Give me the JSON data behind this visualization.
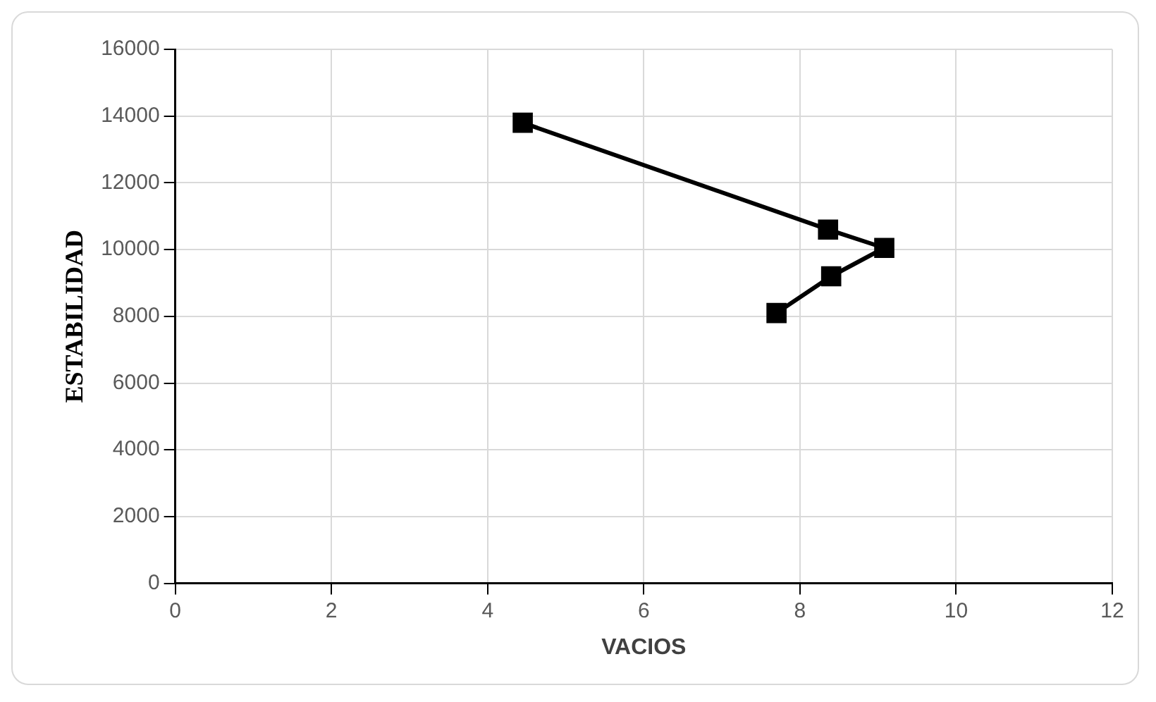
{
  "chart_data": {
    "type": "line",
    "xlabel": "VACIOS",
    "ylabel": "ESTABILIDAD",
    "series": [
      {
        "color": "#000000",
        "x": [
          4.45,
          8.36,
          9.08,
          8.4,
          7.7
        ],
        "values": [
          13800,
          10600,
          10050,
          9200,
          8100
        ]
      }
    ],
    "xlim": [
      0,
      12
    ],
    "xticks": [
      0,
      2,
      4,
      6,
      8,
      10,
      12
    ],
    "ylim": [
      0,
      16000
    ],
    "yticks": [
      0,
      2000,
      4000,
      6000,
      8000,
      10000,
      12000,
      14000,
      16000
    ],
    "grid": true,
    "legend": false,
    "marker": "square",
    "line_style": "solid"
  }
}
